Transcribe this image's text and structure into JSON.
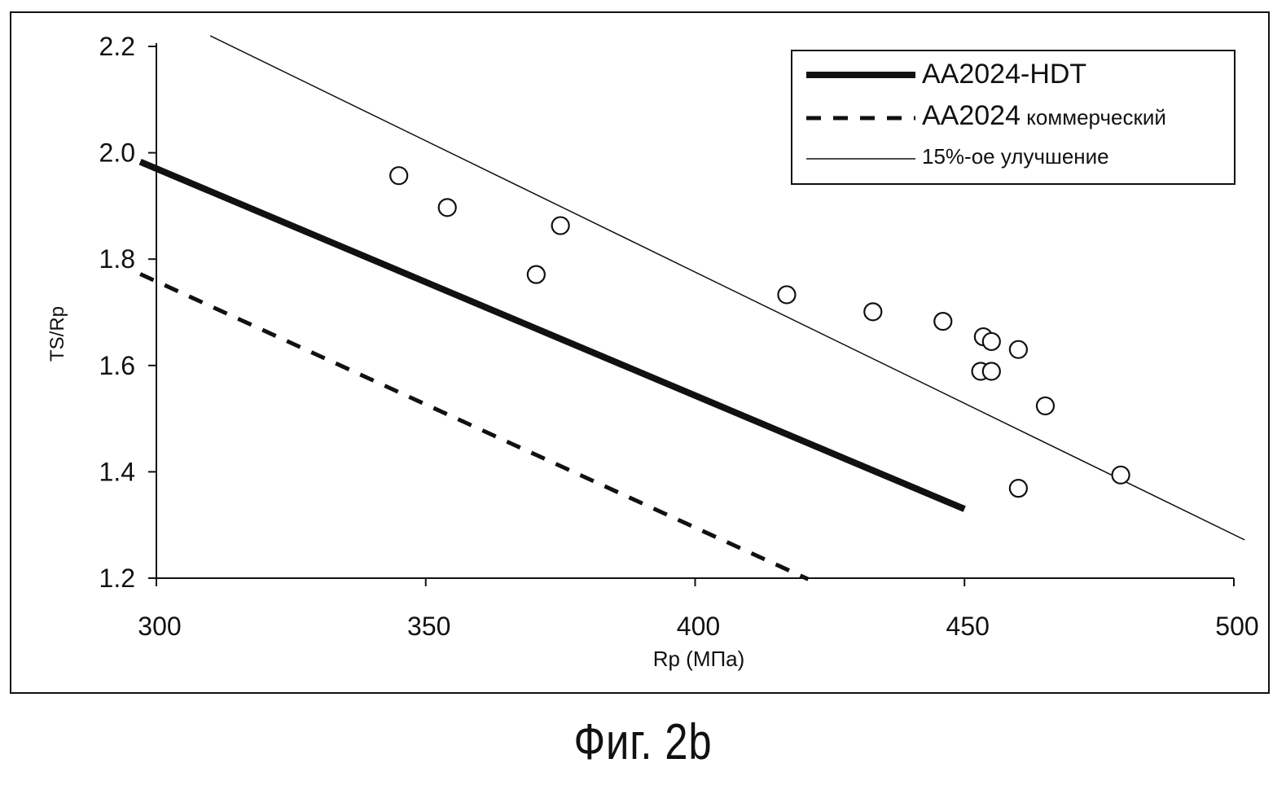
{
  "chart_data": {
    "type": "scatter",
    "xlabel": "Rp (МПа)",
    "ylabel": "TS/Rp",
    "xlim": [
      300,
      500
    ],
    "ylim": [
      1.2,
      2.2
    ],
    "xticks": [
      300,
      350,
      400,
      450,
      500
    ],
    "yticks": [
      1.2,
      1.4,
      1.6,
      1.8,
      2.0,
      2.2
    ],
    "xtick_labels": [
      "300",
      "350",
      "400",
      "450",
      "500"
    ],
    "ytick_labels": [
      "1.2",
      "1.4",
      "1.6",
      "1.8",
      "2.0",
      "2.2"
    ],
    "grid": false,
    "legend_position": "top-right",
    "legend": {
      "hdt": {
        "main": "AA2024-HDT",
        "suffix": ""
      },
      "commercial": {
        "main": "AA2024",
        "suffix": " коммерческий"
      },
      "improvement": {
        "main": "15%-ое улучшение",
        "suffix": ""
      }
    },
    "lines": [
      {
        "key": "hdt",
        "style": "thick",
        "x": [
          297,
          450
        ],
        "y": [
          1.983,
          1.33
        ]
      },
      {
        "key": "commercial",
        "style": "dashed",
        "x": [
          297,
          421
        ],
        "y": [
          1.772,
          1.198
        ]
      },
      {
        "key": "improvement",
        "style": "thin",
        "x": [
          310,
          502
        ],
        "y": [
          2.22,
          1.272
        ]
      }
    ],
    "points": {
      "x": [
        345,
        354,
        370.5,
        375,
        417,
        433,
        446,
        453.5,
        455,
        453,
        455,
        460,
        465,
        460,
        479
      ],
      "y": [
        1.957,
        1.897,
        1.771,
        1.863,
        1.733,
        1.701,
        1.683,
        1.654,
        1.645,
        1.589,
        1.589,
        1.63,
        1.524,
        1.369,
        1.394
      ]
    }
  },
  "caption": "Фиг. 2b"
}
